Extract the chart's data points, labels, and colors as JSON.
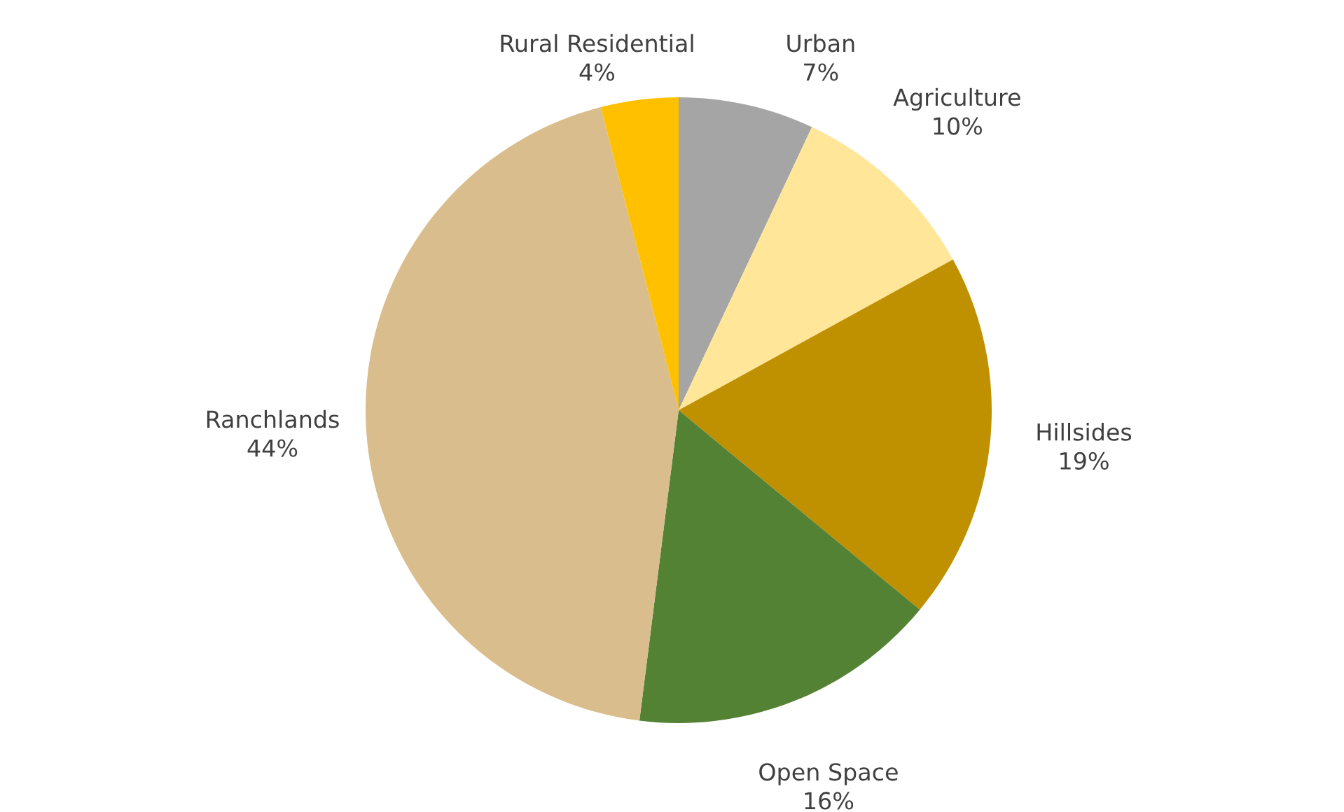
{
  "chart_data": {
    "type": "pie",
    "categories": [
      "Urban",
      "Agriculture",
      "Hillsides",
      "Open Space",
      "Ranchlands",
      "Rural Residential"
    ],
    "values": [
      7,
      10,
      19,
      16,
      44,
      4
    ],
    "value_labels": [
      "7%",
      "10%",
      "19%",
      "16%",
      "44%",
      "4%"
    ],
    "colors": [
      "#a5a5a5",
      "#ffe699",
      "#bf9000",
      "#548235",
      "#d9bd8c",
      "#ffc000"
    ],
    "legend": false
  }
}
